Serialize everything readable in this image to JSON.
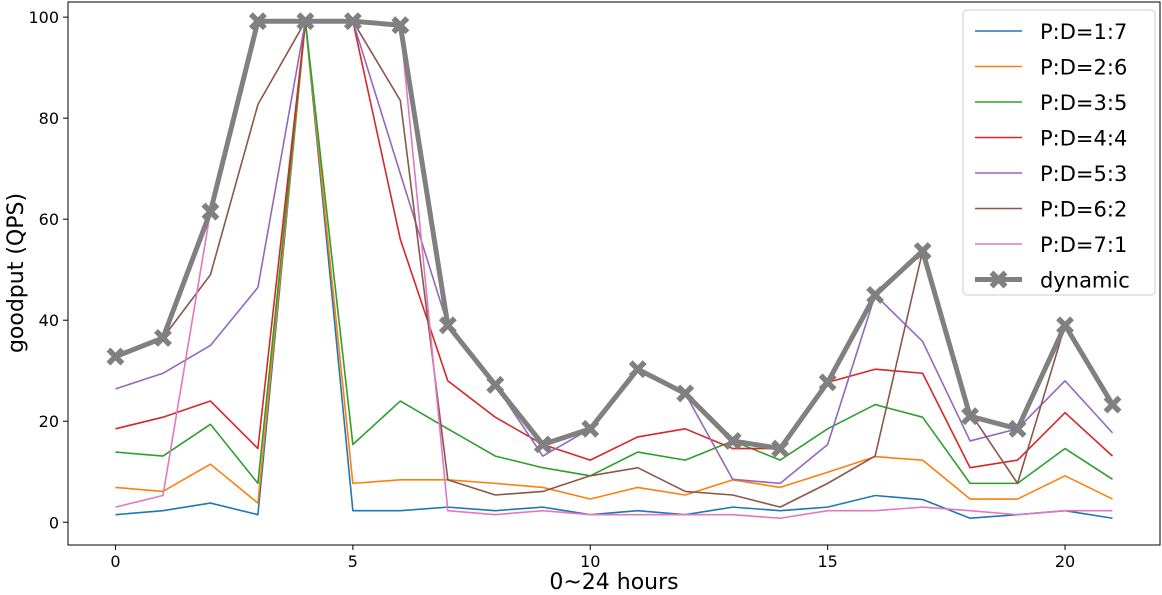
{
  "chart_data": {
    "type": "line",
    "title": "",
    "xlabel": "0~24 hours",
    "ylabel": "goodput (QPS)",
    "xlim": [
      -1.0,
      22.0
    ],
    "ylim": [
      -4.5,
      103
    ],
    "xticks": [
      0,
      5,
      10,
      15,
      20
    ],
    "yticks": [
      0,
      20,
      40,
      60,
      80,
      100
    ],
    "grid": false,
    "legend_position": "top-right",
    "x": [
      0,
      1,
      2,
      3,
      4,
      5,
      6,
      7,
      8,
      9,
      10,
      11,
      12,
      13,
      14,
      15,
      16,
      17,
      18,
      19,
      20,
      21
    ],
    "series": [
      {
        "name": "P:D=1:7",
        "color": "#1f77b4",
        "values": [
          1.5,
          2.3,
          3.8,
          1.5,
          99.2,
          2.3,
          2.3,
          3.0,
          2.3,
          3.0,
          1.5,
          2.3,
          1.5,
          3.0,
          2.3,
          3.0,
          5.3,
          4.5,
          0.8,
          1.5,
          2.3,
          0.8
        ]
      },
      {
        "name": "P:D=2:6",
        "color": "#ff7f0e",
        "values": [
          6.9,
          6.1,
          11.5,
          3.8,
          99.2,
          7.7,
          8.4,
          8.4,
          7.7,
          6.9,
          4.6,
          6.9,
          5.4,
          8.4,
          6.9,
          9.9,
          13.0,
          12.3,
          4.6,
          4.6,
          9.2,
          4.6
        ]
      },
      {
        "name": "P:D=3:5",
        "color": "#2ca02c",
        "values": [
          13.9,
          13.1,
          19.4,
          7.7,
          99.2,
          15.4,
          24.0,
          18.5,
          13.1,
          10.8,
          9.2,
          13.9,
          12.3,
          16.1,
          12.3,
          18.5,
          23.3,
          20.8,
          7.7,
          7.7,
          14.6,
          8.5
        ]
      },
      {
        "name": "P:D=4:4",
        "color": "#d62728",
        "values": [
          18.5,
          20.8,
          24.0,
          14.6,
          99.2,
          99.2,
          56.0,
          28.0,
          20.8,
          15.4,
          12.3,
          16.9,
          18.5,
          14.6,
          14.6,
          27.7,
          30.3,
          29.5,
          10.8,
          12.3,
          21.7,
          13.1
        ]
      },
      {
        "name": "P:D=5:3",
        "color": "#9467bd",
        "values": [
          26.4,
          29.5,
          35.0,
          46.5,
          99.2,
          99.2,
          69.0,
          39.0,
          27.2,
          13.1,
          18.5,
          30.3,
          25.5,
          8.5,
          7.7,
          15.4,
          45.0,
          35.8,
          16.1,
          18.5,
          28.0,
          17.7
        ]
      },
      {
        "name": "P:D=6:2",
        "color": "#8c564b",
        "values": [
          32.8,
          36.5,
          49.0,
          82.7,
          99.2,
          99.2,
          83.5,
          8.4,
          5.4,
          6.1,
          9.2,
          10.8,
          6.1,
          5.4,
          3.0,
          7.7,
          13.1,
          53.7,
          21.7,
          7.7,
          39.0,
          23.3
        ]
      },
      {
        "name": "P:D=7:1",
        "color": "#e377c2",
        "values": [
          3.0,
          5.3,
          61.5,
          99.2,
          99.2,
          99.2,
          98.4,
          2.3,
          1.5,
          2.3,
          1.5,
          1.5,
          1.5,
          1.5,
          0.8,
          2.3,
          2.3,
          3.0,
          2.3,
          1.5,
          2.3,
          2.3
        ]
      },
      {
        "name": "dynamic",
        "color": "#808080",
        "values": [
          32.8,
          36.5,
          61.5,
          99.2,
          99.2,
          99.2,
          98.4,
          39.0,
          27.2,
          15.4,
          18.5,
          30.3,
          25.5,
          16.1,
          14.6,
          27.7,
          45.0,
          53.7,
          21.0,
          18.5,
          39.0,
          23.3
        ]
      }
    ]
  }
}
